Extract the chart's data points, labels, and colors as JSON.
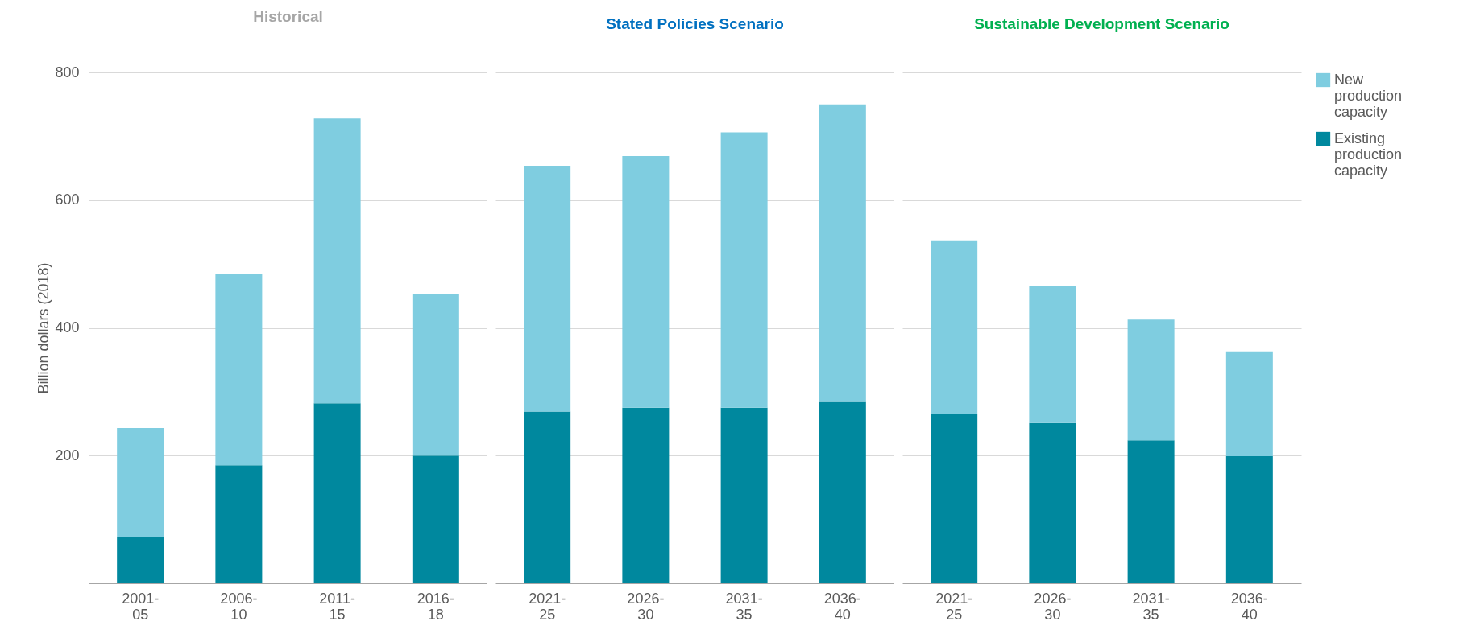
{
  "chart_data": [
    {
      "type": "bar",
      "title": "Historical",
      "stacked": true,
      "ylabel": "Billion dollars (2018)",
      "categories": [
        "2001-05",
        "2006-10",
        "2011-15",
        "2016-18"
      ],
      "series": [
        {
          "color": "#00889e",
          "values": [
            73,
            185,
            282,
            200
          ]
        },
        {
          "color": "#7fcde0",
          "values": [
            170,
            299,
            446,
            253
          ]
        }
      ],
      "ylim": [
        0,
        800
      ],
      "yticks": [
        200,
        400,
        600,
        800
      ],
      "grid": "y",
      "legend": false
    },
    {
      "type": "bar",
      "title": "Stated Policies Scenario",
      "stacked": true,
      "categories": [
        "2021-25",
        "2026-30",
        "2031-35",
        "2036-40"
      ],
      "series": [
        {
          "color": "#00889e",
          "values": [
            269,
            275,
            275,
            284
          ]
        },
        {
          "color": "#7fcde0",
          "values": [
            385,
            394,
            431,
            466
          ]
        }
      ],
      "ylim": [
        0,
        800
      ],
      "yticks": [
        200,
        400,
        600,
        800
      ],
      "grid": "y",
      "legend": false,
      "tick_labels": "x"
    },
    {
      "type": "bar",
      "title": "Sustainable Development Scenario",
      "stacked": true,
      "categories": [
        "2021-25",
        "2026-30",
        "2031-35",
        "2036-40"
      ],
      "series": [
        {
          "name": "Existing production capacity",
          "color": "#00889e",
          "values": [
            265,
            251,
            224,
            199
          ]
        },
        {
          "name": "New production capacity",
          "color": "#7fcde0",
          "values": [
            272,
            215,
            189,
            164
          ]
        }
      ],
      "ylim": [
        0,
        800
      ],
      "yticks": [
        200,
        400,
        600,
        800
      ],
      "grid": "y",
      "legend": "right",
      "tick_labels": "x"
    }
  ]
}
